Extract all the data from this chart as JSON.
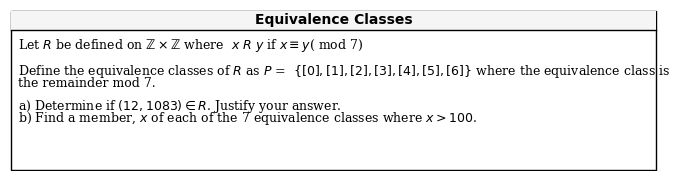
{
  "title": "Equivalence Classes",
  "title_fontsize": 10,
  "bg_color": "#ffffff",
  "border_color": "#000000",
  "header_bg": "#ffffff",
  "line1": "Let $\\mathit{R}$ be defined on $\\mathbb{Z} \\times \\mathbb{Z}$ where  $\\mathit{x}$ $\\mathit{R}$ $\\mathit{y}$ if $\\mathit{x} \\equiv \\mathit{y}$( mod 7)",
  "line2": "Define the equivalence classes of $\\mathit{R}$ as $\\mathit{P}$ =  $\\{[0], [1], [2], [3], [4], [5], [6]\\}$ where the equivalence class is",
  "line3": "the remainder mod 7.",
  "line4": "a) Determine if $(12, 1083) \\in \\mathit{R}$. Justify your answer.",
  "line5": "b) Find a member, $\\mathit{x}$ of each of the 7 equivalence classes where $\\mathit{x} > 100$.",
  "body_fontsize": 9.0
}
